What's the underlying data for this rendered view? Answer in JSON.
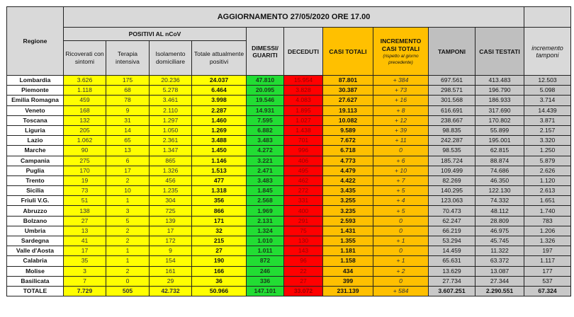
{
  "title": "AGGIORNAMENTO 27/05/2020 ORE 17.00",
  "headers": {
    "regione": "Regione",
    "positivi": "POSITIVI AL nCoV",
    "ricoverati": "Ricoverati con sintomi",
    "terapia": "Terapia intensiva",
    "isolamento": "Isolamento domiciliare",
    "totale_positivi": "Totale attualmente positivi",
    "dimessi": "DIMESSI/ GUARITI",
    "deceduti": "DECEDUTI",
    "casi_totali": "CASI TOTALI",
    "incremento": "INCREMENTO CASI TOTALI",
    "incremento_note": "(rispetto al giorno precedente)",
    "tamponi": "TAMPONI",
    "casi_testati": "CASI TESTATI",
    "incremento_tamponi": "incremento tamponi"
  },
  "colors": {
    "positivi": "#ffff00",
    "dimessi": "#22dd33",
    "deceduti": "#ff0000",
    "casi": "#ffc000",
    "tamponi": "#c8c8c8",
    "header": "#d9d9d9"
  },
  "rows": [
    [
      "Lombardia",
      "3.626",
      "175",
      "20.236",
      "24.037",
      "47.810",
      "15.954",
      "87.801",
      "+ 384",
      "697.561",
      "413.483",
      "12.503"
    ],
    [
      "Piemonte",
      "1.118",
      "68",
      "5.278",
      "6.464",
      "20.095",
      "3.828",
      "30.387",
      "+ 73",
      "298.571",
      "196.790",
      "5.098"
    ],
    [
      "Emilia Romagna",
      "459",
      "78",
      "3.461",
      "3.998",
      "19.546",
      "4.083",
      "27.627",
      "+ 16",
      "301.568",
      "186.933",
      "3.714"
    ],
    [
      "Veneto",
      "168",
      "9",
      "2.110",
      "2.287",
      "14.931",
      "1.895",
      "19.113",
      "+ 8",
      "616.691",
      "317.690",
      "14.439"
    ],
    [
      "Toscana",
      "132",
      "31",
      "1.297",
      "1.460",
      "7.595",
      "1.027",
      "10.082",
      "+ 12",
      "238.667",
      "170.802",
      "3.871"
    ],
    [
      "Liguria",
      "205",
      "14",
      "1.050",
      "1.269",
      "6.882",
      "1.438",
      "9.589",
      "+ 39",
      "98.835",
      "55.899",
      "2.157"
    ],
    [
      "Lazio",
      "1.062",
      "65",
      "2.361",
      "3.488",
      "3.483",
      "701",
      "7.672",
      "+ 11",
      "242.287",
      "195.001",
      "3.320"
    ],
    [
      "Marche",
      "90",
      "13",
      "1.347",
      "1.450",
      "4.272",
      "996",
      "6.718",
      "0",
      "98.535",
      "62.815",
      "1.250"
    ],
    [
      "Campania",
      "275",
      "6",
      "865",
      "1.146",
      "3.221",
      "406",
      "4.773",
      "+ 6",
      "185.724",
      "88.874",
      "5.879"
    ],
    [
      "Puglia",
      "170",
      "17",
      "1.326",
      "1.513",
      "2.471",
      "495",
      "4.479",
      "+ 10",
      "109.499",
      "74.686",
      "2.626"
    ],
    [
      "Trento",
      "19",
      "2",
      "456",
      "477",
      "3.483",
      "462",
      "4.422",
      "+ 7",
      "82.269",
      "46.350",
      "1.120"
    ],
    [
      "Sicilia",
      "73",
      "10",
      "1.235",
      "1.318",
      "1.845",
      "272",
      "3.435",
      "+ 5",
      "140.295",
      "122.130",
      "2.613"
    ],
    [
      "Friuli V.G.",
      "51",
      "1",
      "304",
      "356",
      "2.568",
      "331",
      "3.255",
      "+ 4",
      "123.063",
      "74.332",
      "1.651"
    ],
    [
      "Abruzzo",
      "138",
      "3",
      "725",
      "866",
      "1.969",
      "400",
      "3.235",
      "+ 5",
      "70.473",
      "48.112",
      "1.740"
    ],
    [
      "Bolzano",
      "27",
      "5",
      "139",
      "171",
      "2.131",
      "291",
      "2.593",
      "0",
      "62.247",
      "28.809",
      "783"
    ],
    [
      "Umbria",
      "13",
      "2",
      "17",
      "32",
      "1.324",
      "75",
      "1.431",
      "0",
      "66.219",
      "46.975",
      "1.206"
    ],
    [
      "Sardegna",
      "41",
      "2",
      "172",
      "215",
      "1.010",
      "130",
      "1.355",
      "+ 1",
      "53.294",
      "45.745",
      "1.326"
    ],
    [
      "Valle d'Aosta",
      "17",
      "1",
      "9",
      "27",
      "1.011",
      "143",
      "1.181",
      "0",
      "14.459",
      "11.322",
      "197"
    ],
    [
      "Calabria",
      "35",
      "1",
      "154",
      "190",
      "872",
      "96",
      "1.158",
      "+ 1",
      "65.631",
      "63.372",
      "1.117"
    ],
    [
      "Molise",
      "3",
      "2",
      "161",
      "166",
      "246",
      "22",
      "434",
      "+ 2",
      "13.629",
      "13.087",
      "177"
    ],
    [
      "Basilicata",
      "7",
      "0",
      "29",
      "36",
      "336",
      "27",
      "399",
      "0",
      "27.734",
      "27.344",
      "537"
    ]
  ],
  "total": [
    "TOTALE",
    "7.729",
    "505",
    "42.732",
    "50.966",
    "147.101",
    "33.072",
    "231.139",
    "+ 584",
    "3.607.251",
    "2.290.551",
    "67.324"
  ]
}
